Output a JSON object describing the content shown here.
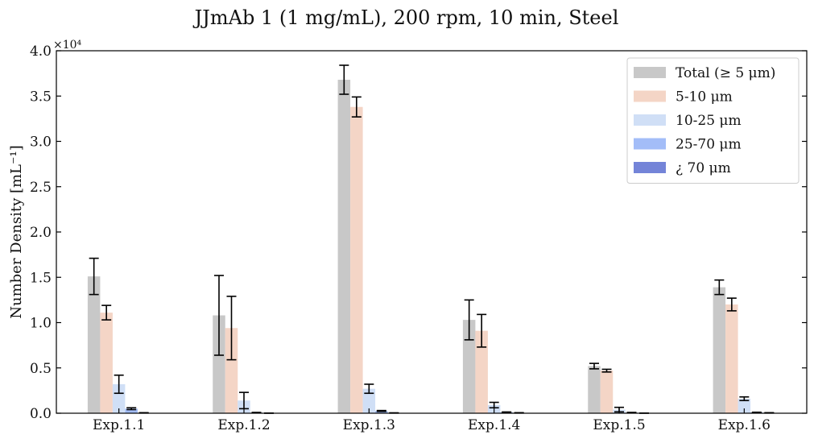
{
  "chart_data": {
    "type": "bar",
    "title": "JJmAb 1 (1 mg/mL), 200 rpm, 10 min, Steel",
    "xlabel": "",
    "ylabel": "Number Density [mL⁻¹]",
    "y_exponent_label": "×10⁴",
    "ylim": [
      0,
      40000
    ],
    "yticks": [
      0,
      5000,
      10000,
      15000,
      20000,
      25000,
      30000,
      35000,
      40000
    ],
    "ytick_labels": [
      "0.0",
      "0.5",
      "1.0",
      "1.5",
      "2.0",
      "2.5",
      "3.0",
      "3.5",
      "4.0"
    ],
    "categories": [
      "Exp.1.1",
      "Exp.1.2",
      "Exp.1.3",
      "Exp.1.4",
      "Exp.1.5",
      "Exp.1.6"
    ],
    "legend_position": "top-right",
    "grid": false,
    "series": [
      {
        "name": "Total (≥ 5 μm)",
        "color": "#c8c8c8",
        "values": [
          15100,
          10800,
          36800,
          10300,
          5200,
          13900
        ],
        "errors": [
          2000,
          4400,
          1600,
          2200,
          300,
          800
        ]
      },
      {
        "name": "5-10 μm",
        "color": "#f4d5c6",
        "values": [
          11100,
          9400,
          33800,
          9100,
          4700,
          12000
        ],
        "errors": [
          800,
          3500,
          1100,
          1800,
          150,
          700
        ]
      },
      {
        "name": "10-25 μm",
        "color": "#d0dff6",
        "values": [
          3200,
          1400,
          2700,
          900,
          400,
          1600
        ],
        "errors": [
          1000,
          900,
          500,
          300,
          250,
          200
        ]
      },
      {
        "name": "25-70 μm",
        "color": "#a3bdf8",
        "values": [
          500,
          60,
          250,
          100,
          60,
          80
        ],
        "errors": [
          100,
          30,
          50,
          40,
          30,
          30
        ]
      },
      {
        "name": "¿ 70 μm",
        "color": "#7484d8",
        "values": [
          40,
          10,
          30,
          40,
          10,
          40
        ],
        "errors": [
          20,
          5,
          15,
          20,
          5,
          20
        ]
      }
    ]
  }
}
